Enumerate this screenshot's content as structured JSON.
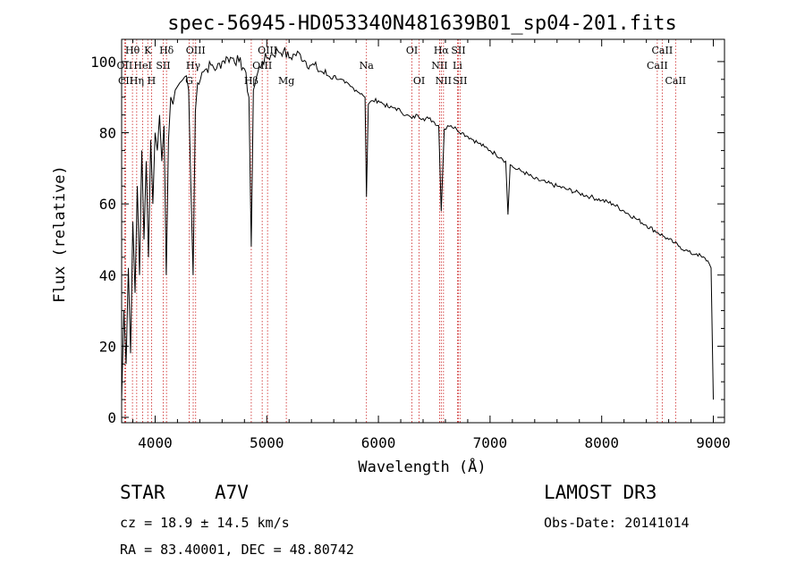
{
  "chart_data": {
    "type": "line",
    "title": "spec-56945-HD053340N481639B01_sp04-201.fits",
    "xlabel": "Wavelength (Å)",
    "ylabel": "Flux (relative)",
    "xlim": [
      3700,
      9100
    ],
    "ylim": [
      0,
      105
    ],
    "xticks": [
      4000,
      5000,
      6000,
      7000,
      8000,
      9000
    ],
    "yticks": [
      0,
      20,
      40,
      60,
      80,
      100
    ],
    "grid": false,
    "series": [
      {
        "name": "spectrum",
        "x": [
          3700,
          3720,
          3740,
          3760,
          3780,
          3800,
          3820,
          3840,
          3860,
          3880,
          3900,
          3920,
          3940,
          3960,
          3980,
          4000,
          4020,
          4040,
          4060,
          4080,
          4100,
          4120,
          4140,
          4160,
          4180,
          4200,
          4220,
          4250,
          4280,
          4300,
          4320,
          4340,
          4360,
          4380,
          4420,
          4460,
          4500,
          4550,
          4600,
          4650,
          4700,
          4750,
          4800,
          4840,
          4861,
          4880,
          4920,
          4960,
          5000,
          5050,
          5100,
          5150,
          5200,
          5250,
          5300,
          5350,
          5400,
          5450,
          5500,
          5550,
          5600,
          5650,
          5700,
          5750,
          5800,
          5850,
          5880,
          5893,
          5910,
          5950,
          6000,
          6050,
          6100,
          6150,
          6200,
          6250,
          6300,
          6350,
          6400,
          6450,
          6500,
          6540,
          6563,
          6590,
          6620,
          6650,
          6700,
          6750,
          6800,
          6850,
          6900,
          6950,
          7000,
          7050,
          7100,
          7140,
          7160,
          7180,
          7220,
          7300,
          7400,
          7500,
          7600,
          7700,
          7800,
          7900,
          8000,
          8100,
          8200,
          8300,
          8400,
          8500,
          8550,
          8600,
          8650,
          8700,
          8750,
          8800,
          8850,
          8900,
          8950,
          8980,
          9000
        ],
        "y": [
          5,
          30,
          15,
          42,
          18,
          55,
          35,
          65,
          40,
          75,
          50,
          72,
          45,
          78,
          60,
          80,
          75,
          85,
          72,
          82,
          40,
          78,
          90,
          88,
          92,
          93,
          94,
          95,
          96,
          92,
          65,
          40,
          86,
          94,
          97,
          98,
          99,
          98,
          100,
          101,
          101,
          100,
          98,
          90,
          48,
          92,
          97,
          100,
          101,
          102,
          103,
          103,
          101,
          102,
          102,
          100,
          99,
          98,
          97,
          96,
          96,
          95,
          94,
          93,
          92,
          91,
          90,
          62,
          88,
          89,
          89,
          88,
          87,
          87,
          86,
          85,
          84,
          85,
          84,
          84,
          83,
          82,
          58,
          81,
          82,
          82,
          81,
          80,
          79,
          78,
          77,
          76,
          75,
          74,
          73,
          72,
          57,
          71,
          70,
          69,
          67,
          66,
          65,
          64,
          63,
          62,
          61,
          60,
          58,
          56,
          54,
          52,
          51,
          50,
          49,
          48,
          47,
          46,
          46,
          45,
          44,
          42,
          5
        ]
      }
    ],
    "spectral_lines": [
      {
        "label": "Hθ",
        "wl": 3797,
        "row": 0
      },
      {
        "label": "OII",
        "wl": 3727,
        "row": 1
      },
      {
        "label": "CII",
        "wl": 3736,
        "row": 2
      },
      {
        "label": "K",
        "wl": 3934,
        "row": 0
      },
      {
        "label": "HeI",
        "wl": 3889,
        "row": 1
      },
      {
        "label": "Hη",
        "wl": 3835,
        "row": 2
      },
      {
        "label": "Hδ",
        "wl": 4102,
        "row": 0
      },
      {
        "label": "SII",
        "wl": 4072,
        "row": 1
      },
      {
        "label": "H",
        "wl": 3968,
        "row": 2
      },
      {
        "label": "OIII",
        "wl": 4363,
        "row": 0
      },
      {
        "label": "Hγ",
        "wl": 4341,
        "row": 1
      },
      {
        "label": "G",
        "wl": 4305,
        "row": 2
      },
      {
        "label": "OIII",
        "wl": 5007,
        "row": 0
      },
      {
        "label": "OIII",
        "wl": 4959,
        "row": 1
      },
      {
        "label": "Hβ",
        "wl": 4861,
        "row": 2
      },
      {
        "label": "Mg",
        "wl": 5175,
        "row": 2
      },
      {
        "label": "Na",
        "wl": 5893,
        "row": 1
      },
      {
        "label": "OI",
        "wl": 6300,
        "row": 0
      },
      {
        "label": "OI",
        "wl": 6364,
        "row": 2
      },
      {
        "label": "Hα",
        "wl": 6563,
        "row": 0
      },
      {
        "label": "SII",
        "wl": 6716,
        "row": 0
      },
      {
        "label": "NII",
        "wl": 6548,
        "row": 1
      },
      {
        "label": "Li",
        "wl": 6708,
        "row": 1
      },
      {
        "label": "NII",
        "wl": 6583,
        "row": 2
      },
      {
        "label": "SII",
        "wl": 6731,
        "row": 2
      },
      {
        "label": "CaII",
        "wl": 8542,
        "row": 0
      },
      {
        "label": "CaII",
        "wl": 8498,
        "row": 1
      },
      {
        "label": "CaII",
        "wl": 8662,
        "row": 2
      }
    ]
  },
  "info": {
    "object_class": "STAR",
    "subclass": "A7V",
    "survey": "LAMOST DR3",
    "redshift": "cz = 18.9 ± 14.5 km/s",
    "obs_date": "Obs-Date: 20141014",
    "coords": "RA =  83.40001, DEC =  48.80742"
  },
  "colors": {
    "line_marker": "#cc2222",
    "spectrum": "#000000",
    "axes": "#000000"
  }
}
